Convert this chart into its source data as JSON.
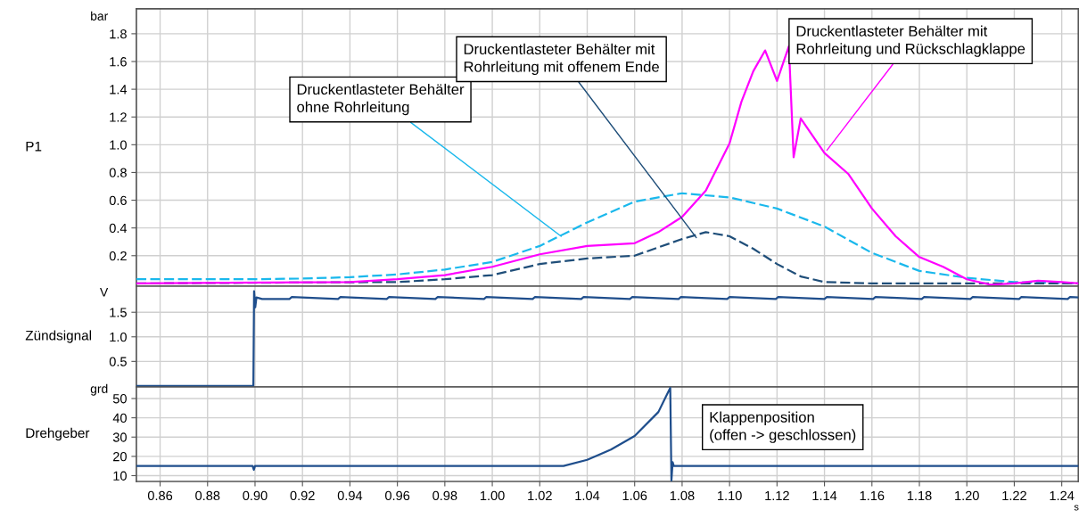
{
  "chart_data": [
    {
      "type": "line",
      "ylabel": "P1",
      "xlim": [
        0.85,
        1.247
      ],
      "ylim": [
        -0.02,
        1.98
      ],
      "xticks": [
        {
          "value": 0.86,
          "label": null
        },
        {
          "value": 0.88,
          "label": null
        },
        {
          "value": 0.9,
          "label": null
        },
        {
          "value": 0.92,
          "label": null
        },
        {
          "value": 0.94,
          "label": null
        },
        {
          "value": 0.96,
          "label": null
        },
        {
          "value": 0.98,
          "label": null
        },
        {
          "value": 1.0,
          "label": null
        },
        {
          "value": 1.02,
          "label": null
        },
        {
          "value": 1.04,
          "label": null
        },
        {
          "value": 1.06,
          "label": null
        },
        {
          "value": 1.08,
          "label": null
        },
        {
          "value": 1.1,
          "label": null
        },
        {
          "value": 1.12,
          "label": null
        },
        {
          "value": 1.14,
          "label": null
        },
        {
          "value": 1.16,
          "label": null
        },
        {
          "value": 1.18,
          "label": null
        },
        {
          "value": 1.2,
          "label": null
        },
        {
          "value": 1.22,
          "label": null
        },
        {
          "value": 1.24,
          "label": null
        }
      ],
      "yticks": [
        0.2,
        0.4,
        0.6,
        0.8,
        {
          "value": 1.0,
          "label": "1.0"
        },
        1.2,
        1.4,
        1.6,
        1.8
      ],
      "tick_labels": "y",
      "grid": true,
      "series": [
        {
          "color": "#1ab8ec",
          "line_style": "dashed",
          "x": [
            0.85,
            0.9,
            0.92,
            0.94,
            0.96,
            0.98,
            1.0,
            1.02,
            1.04,
            1.06,
            1.08,
            1.1,
            1.12,
            1.14,
            1.16,
            1.18,
            1.2,
            1.22,
            1.247
          ],
          "values": [
            0.03,
            0.03,
            0.035,
            0.045,
            0.065,
            0.1,
            0.155,
            0.27,
            0.44,
            0.59,
            0.65,
            0.62,
            0.54,
            0.41,
            0.22,
            0.09,
            0.04,
            0.01,
            0.0
          ]
        },
        {
          "color": "#1f4e79",
          "line_style": "dashed",
          "x": [
            0.85,
            0.96,
            0.98,
            1.0,
            1.02,
            1.04,
            1.06,
            1.08,
            1.09,
            1.1,
            1.11,
            1.12,
            1.13,
            1.14,
            1.16,
            1.247
          ],
          "values": [
            0.0,
            0.01,
            0.03,
            0.06,
            0.14,
            0.18,
            0.2,
            0.32,
            0.37,
            0.34,
            0.25,
            0.14,
            0.05,
            0.01,
            0.0,
            0.0
          ]
        },
        {
          "color": "#ff00ff",
          "line_style": "solid",
          "x": [
            0.85,
            0.94,
            0.96,
            0.98,
            1.0,
            1.02,
            1.04,
            1.06,
            1.07,
            1.08,
            1.09,
            1.1,
            1.105,
            1.11,
            1.115,
            1.12,
            1.125,
            1.127,
            1.13,
            1.14,
            1.15,
            1.16,
            1.17,
            1.18,
            1.19,
            1.2,
            1.21,
            1.22,
            1.23,
            1.24,
            1.247
          ],
          "values": [
            0.0,
            0.01,
            0.03,
            0.06,
            0.12,
            0.21,
            0.27,
            0.29,
            0.37,
            0.48,
            0.67,
            1.01,
            1.31,
            1.53,
            1.68,
            1.46,
            1.71,
            0.91,
            1.19,
            0.94,
            0.79,
            0.54,
            0.34,
            0.19,
            0.12,
            0.03,
            -0.01,
            0.0,
            0.02,
            0.01,
            0.0
          ]
        }
      ],
      "annotations": [
        "bar",
        {
          "text": "Druckentlasteter Behälter\nohne Rohrleitung",
          "x": 1.029,
          "y": 0.34
        },
        {
          "text": "Druckentlasteter Behälter mit\nRohrleitung mit offenem Ende",
          "x": 1.086,
          "y": 0.33
        },
        {
          "text": "Druckentlasteter Behälter mit\nRohrleitung und Rückschlagklappe",
          "x": 1.141,
          "y": 0.96
        }
      ]
    },
    {
      "type": "line",
      "ylabel": "Zündsignal",
      "xlim": [
        0.85,
        1.247
      ],
      "ylim": [
        -0.02,
        2.03
      ],
      "xticks": [
        {
          "value": 0.86,
          "label": null
        },
        {
          "value": 0.88,
          "label": null
        },
        {
          "value": 0.9,
          "label": null
        },
        {
          "value": 0.92,
          "label": null
        },
        {
          "value": 0.94,
          "label": null
        },
        {
          "value": 0.96,
          "label": null
        },
        {
          "value": 0.98,
          "label": null
        },
        {
          "value": 1.0,
          "label": null
        },
        {
          "value": 1.02,
          "label": null
        },
        {
          "value": 1.04,
          "label": null
        },
        {
          "value": 1.06,
          "label": null
        },
        {
          "value": 1.08,
          "label": null
        },
        {
          "value": 1.1,
          "label": null
        },
        {
          "value": 1.12,
          "label": null
        },
        {
          "value": 1.14,
          "label": null
        },
        {
          "value": 1.16,
          "label": null
        },
        {
          "value": 1.18,
          "label": null
        },
        {
          "value": 1.2,
          "label": null
        },
        {
          "value": 1.22,
          "label": null
        },
        {
          "value": 1.24,
          "label": null
        }
      ],
      "yticks": [
        0.5,
        {
          "value": 1.0,
          "label": "1.0"
        },
        1.5
      ],
      "tick_labels": "y",
      "grid": true,
      "series": [
        {
          "color": "#1f4e8c",
          "line_style": "solid",
          "x": [
            0.85,
            0.8993,
            0.8996,
            0.9001,
            0.9006,
            0.903,
            0.9145,
            0.9155,
            0.935,
            0.936,
            0.9555,
            0.9565,
            0.976,
            0.977,
            0.9965,
            0.9975,
            1.017,
            1.018,
            1.0375,
            1.0385,
            1.058,
            1.059,
            1.0785,
            1.0795,
            1.099,
            1.1,
            1.1195,
            1.1205,
            1.14,
            1.141,
            1.1605,
            1.1615,
            1.181,
            1.182,
            1.2015,
            1.2025,
            1.222,
            1.223,
            1.2425,
            1.2435,
            1.247
          ],
          "values": [
            0.0,
            0.0,
            1.93,
            1.6,
            1.8,
            1.77,
            1.77,
            1.81,
            1.77,
            1.81,
            1.77,
            1.81,
            1.77,
            1.81,
            1.77,
            1.81,
            1.77,
            1.81,
            1.77,
            1.81,
            1.77,
            1.81,
            1.77,
            1.81,
            1.77,
            1.81,
            1.77,
            1.81,
            1.77,
            1.81,
            1.77,
            1.81,
            1.77,
            1.81,
            1.77,
            1.81,
            1.77,
            1.81,
            1.77,
            1.81,
            1.8
          ]
        }
      ],
      "annotations": [
        "V"
      ]
    },
    {
      "type": "line",
      "ylabel": "Drehgeber",
      "xlabel": "s",
      "xlim": [
        0.85,
        1.247
      ],
      "ylim": [
        7,
        56
      ],
      "xticks": [
        {
          "value": 0.86,
          "label": "0.86"
        },
        {
          "value": 0.88,
          "label": "0.88"
        },
        {
          "value": 0.9,
          "label": "0.90"
        },
        {
          "value": 0.92,
          "label": "0.92"
        },
        {
          "value": 0.94,
          "label": "0.94"
        },
        {
          "value": 0.96,
          "label": "0.96"
        },
        {
          "value": 0.98,
          "label": "0.98"
        },
        {
          "value": 1.0,
          "label": "1.00"
        },
        {
          "value": 1.02,
          "label": "1.02"
        },
        {
          "value": 1.04,
          "label": "1.04"
        },
        {
          "value": 1.06,
          "label": "1.06"
        },
        {
          "value": 1.08,
          "label": "1.08"
        },
        {
          "value": 1.1,
          "label": "1.10"
        },
        {
          "value": 1.12,
          "label": "1.12"
        },
        {
          "value": 1.14,
          "label": "1.14"
        },
        {
          "value": 1.16,
          "label": "1.16"
        },
        {
          "value": 1.18,
          "label": "1.18"
        },
        {
          "value": 1.2,
          "label": "1.20"
        },
        {
          "value": 1.22,
          "label": "1.22"
        },
        {
          "value": 1.24,
          "label": "1.24"
        }
      ],
      "yticks": [
        10,
        20,
        30,
        40,
        50
      ],
      "grid": true,
      "series": [
        {
          "color": "#1f4e8c",
          "line_style": "solid",
          "x": [
            0.85,
            0.899,
            0.8995,
            0.9,
            1.03,
            1.04,
            1.05,
            1.06,
            1.07,
            1.072,
            1.075,
            1.0755,
            1.076,
            1.0765,
            1.247
          ],
          "values": [
            15,
            15,
            13,
            15,
            15,
            18.2,
            23.5,
            30.6,
            43,
            48,
            55.5,
            7.5,
            17,
            15,
            15
          ]
        }
      ],
      "annotations": [
        "grd",
        "Klappenposition\n(offen -> geschlossen)"
      ]
    }
  ]
}
